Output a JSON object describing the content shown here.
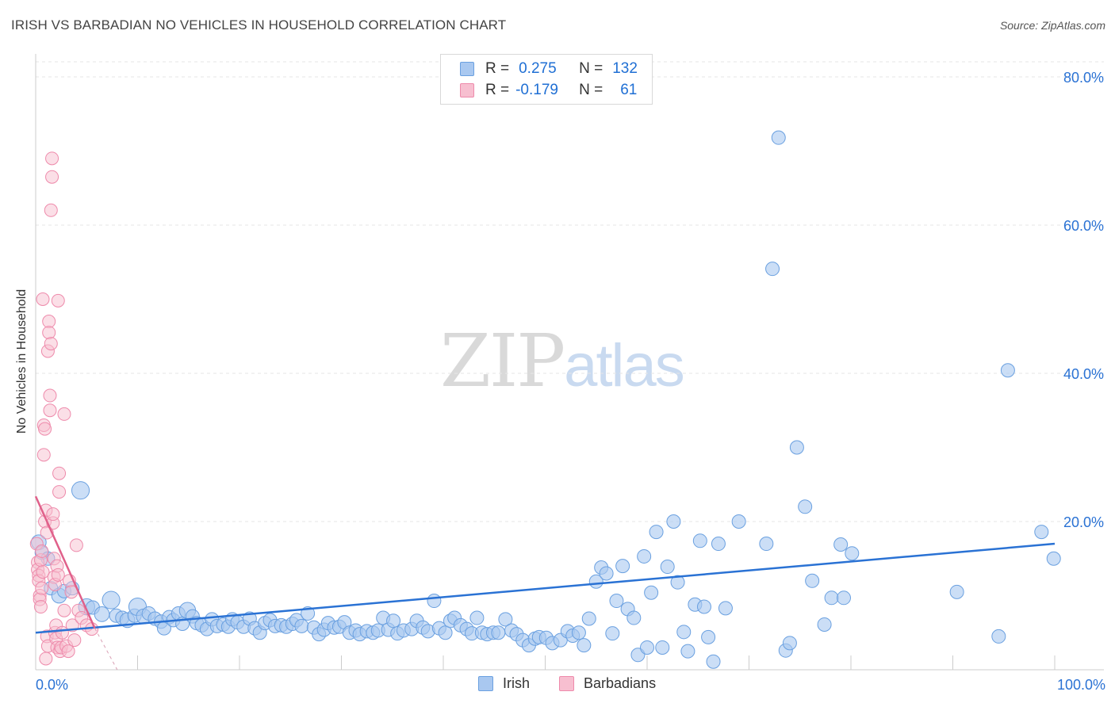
{
  "title": "IRISH VS BARBADIAN NO VEHICLES IN HOUSEHOLD CORRELATION CHART",
  "source": "Source: ZipAtlas.com",
  "watermark": {
    "part1": "ZIP",
    "part2": "atlas"
  },
  "legend": {
    "rows": [
      {
        "r_label": "R =",
        "r_value": "0.275",
        "n_label": "N =",
        "n_value": "132"
      },
      {
        "r_label": "R =",
        "r_value": "-0.179",
        "n_label": "N =",
        "n_value": "61"
      }
    ]
  },
  "colors": {
    "irish_fill": "#a9c8f0",
    "irish_stroke": "#6aa0e0",
    "irish_line": "#2a72d4",
    "barbadian_fill": "#f7bfd0",
    "barbadian_stroke": "#ee8aab",
    "barbadian_line": "#e0608a",
    "axis_text": "#2a72d4",
    "grid": "#e6e6e6"
  },
  "chart_data": {
    "type": "scatter",
    "title": "IRISH VS BARBADIAN NO VEHICLES IN HOUSEHOLD CORRELATION CHART",
    "xlabel": "",
    "ylabel": "No Vehicles in Household",
    "xlim": [
      0,
      100
    ],
    "ylim": [
      0,
      80
    ],
    "x_tick_labels": [
      "0.0%",
      "100.0%"
    ],
    "y_ticks": [
      20,
      40,
      60,
      80
    ],
    "y_tick_labels": [
      "20.0%",
      "40.0%",
      "60.0%",
      "80.0%"
    ],
    "legend_position": "top-center",
    "series": [
      {
        "name": "Irish",
        "r": 0.275,
        "n": 132,
        "trend": {
          "x": [
            0,
            100
          ],
          "y": [
            5.0,
            17.0
          ]
        },
        "points": [
          [
            0.3,
            17.2,
            1.1
          ],
          [
            0.6,
            15.8,
            1.0
          ],
          [
            1.2,
            15.0,
            1.0
          ],
          [
            1.5,
            11.0,
            1.0
          ],
          [
            2.3,
            10.0,
            1.1
          ],
          [
            2.8,
            10.6,
            1.0
          ],
          [
            3.6,
            11.0,
            1.0
          ],
          [
            4.4,
            24.2,
            1.3
          ],
          [
            5.0,
            8.5,
            1.2
          ],
          [
            5.6,
            8.4,
            1.0
          ],
          [
            6.5,
            7.5,
            1.1
          ],
          [
            7.4,
            9.4,
            1.3
          ],
          [
            7.9,
            7.3,
            1.0
          ],
          [
            8.5,
            7.0,
            1.0
          ],
          [
            9.0,
            6.7,
            1.1
          ],
          [
            9.7,
            7.3,
            1.0
          ],
          [
            10.0,
            8.5,
            1.3
          ],
          [
            10.6,
            7.2,
            1.1
          ],
          [
            11.1,
            7.6,
            1.0
          ],
          [
            11.7,
            6.9,
            1.0
          ],
          [
            12.3,
            6.5,
            1.0
          ],
          [
            12.6,
            5.6,
            1.0
          ],
          [
            13.1,
            7.1,
            1.0
          ],
          [
            13.5,
            6.7,
            1.0
          ],
          [
            14.0,
            7.6,
            1.0
          ],
          [
            14.4,
            6.2,
            1.0
          ],
          [
            14.9,
            8.0,
            1.2
          ],
          [
            15.4,
            7.2,
            1.0
          ],
          [
            15.8,
            6.3,
            1.0
          ],
          [
            16.3,
            6.0,
            1.0
          ],
          [
            16.8,
            5.5,
            1.0
          ],
          [
            17.3,
            6.8,
            1.0
          ],
          [
            17.8,
            5.9,
            1.0
          ],
          [
            18.4,
            6.1,
            1.0
          ],
          [
            18.9,
            5.8,
            1.0
          ],
          [
            19.3,
            6.8,
            1.0
          ],
          [
            19.8,
            6.4,
            1.0
          ],
          [
            20.4,
            5.8,
            1.0
          ],
          [
            21.0,
            6.9,
            1.0
          ],
          [
            21.5,
            5.6,
            1.0
          ],
          [
            22.0,
            5.0,
            1.0
          ],
          [
            22.5,
            6.3,
            1.0
          ],
          [
            23.0,
            6.7,
            1.0
          ],
          [
            23.5,
            5.9,
            1.0
          ],
          [
            24.1,
            6.0,
            1.0
          ],
          [
            24.6,
            5.8,
            1.0
          ],
          [
            25.2,
            6.2,
            1.0
          ],
          [
            25.6,
            6.7,
            1.0
          ],
          [
            26.1,
            5.9,
            1.0
          ],
          [
            26.7,
            7.6,
            1.0
          ],
          [
            27.3,
            5.7,
            1.0
          ],
          [
            27.8,
            4.8,
            1.0
          ],
          [
            28.3,
            5.4,
            1.0
          ],
          [
            28.7,
            6.3,
            1.0
          ],
          [
            29.3,
            5.7,
            1.0
          ],
          [
            29.8,
            5.8,
            1.0
          ],
          [
            30.3,
            6.4,
            1.0
          ],
          [
            30.8,
            5.0,
            1.0
          ],
          [
            31.4,
            5.3,
            1.0
          ],
          [
            31.8,
            4.8,
            1.0
          ],
          [
            32.5,
            5.2,
            1.0
          ],
          [
            33.1,
            5.0,
            1.0
          ],
          [
            33.6,
            5.3,
            1.0
          ],
          [
            34.1,
            7.0,
            1.0
          ],
          [
            34.6,
            5.4,
            1.0
          ],
          [
            35.1,
            6.6,
            1.0
          ],
          [
            35.5,
            4.9,
            1.0
          ],
          [
            36.1,
            5.3,
            1.0
          ],
          [
            36.9,
            5.5,
            1.0
          ],
          [
            37.4,
            6.6,
            1.0
          ],
          [
            38.0,
            5.7,
            1.0
          ],
          [
            38.5,
            5.2,
            1.0
          ],
          [
            39.1,
            9.3,
            1.0
          ],
          [
            39.6,
            5.6,
            1.0
          ],
          [
            40.2,
            5.0,
            1.0
          ],
          [
            40.7,
            6.6,
            1.0
          ],
          [
            41.1,
            7.0,
            1.0
          ],
          [
            41.7,
            6.0,
            1.0
          ],
          [
            42.3,
            5.5,
            1.0
          ],
          [
            42.8,
            4.9,
            1.0
          ],
          [
            43.3,
            7.0,
            1.0
          ],
          [
            43.8,
            5.0,
            1.0
          ],
          [
            44.3,
            4.8,
            1.0
          ],
          [
            44.9,
            5.0,
            1.0
          ],
          [
            45.4,
            5.0,
            1.0
          ],
          [
            46.1,
            6.8,
            1.0
          ],
          [
            46.7,
            5.3,
            1.0
          ],
          [
            47.2,
            4.8,
            1.0
          ],
          [
            47.8,
            4.0,
            1.0
          ],
          [
            48.4,
            3.3,
            1.0
          ],
          [
            49.0,
            4.2,
            1.0
          ],
          [
            49.4,
            4.4,
            1.0
          ],
          [
            50.1,
            4.3,
            1.0
          ],
          [
            50.7,
            3.6,
            1.0
          ],
          [
            51.5,
            4.0,
            1.0
          ],
          [
            52.2,
            5.2,
            1.0
          ],
          [
            52.7,
            4.6,
            1.0
          ],
          [
            53.3,
            5.0,
            1.0
          ],
          [
            53.8,
            3.3,
            1.0
          ],
          [
            54.3,
            6.9,
            1.0
          ],
          [
            55.0,
            11.9,
            1.0
          ],
          [
            55.5,
            13.8,
            1.0
          ],
          [
            56.0,
            13.0,
            1.0
          ],
          [
            56.6,
            4.9,
            1.0
          ],
          [
            57.0,
            9.3,
            1.0
          ],
          [
            57.6,
            14.0,
            1.0
          ],
          [
            58.1,
            8.2,
            1.0
          ],
          [
            58.7,
            7.0,
            1.0
          ],
          [
            59.1,
            2.0,
            1.0
          ],
          [
            59.7,
            15.3,
            1.0
          ],
          [
            60.0,
            3.0,
            1.0
          ],
          [
            60.4,
            10.4,
            1.0
          ],
          [
            60.9,
            18.6,
            1.0
          ],
          [
            61.5,
            3.0,
            1.0
          ],
          [
            62.0,
            13.9,
            1.0
          ],
          [
            62.6,
            20.0,
            1.0
          ],
          [
            63.0,
            11.8,
            1.0
          ],
          [
            63.6,
            5.1,
            1.0
          ],
          [
            64.0,
            2.5,
            1.0
          ],
          [
            64.7,
            8.8,
            1.0
          ],
          [
            65.2,
            17.4,
            1.0
          ],
          [
            65.6,
            8.5,
            1.0
          ],
          [
            66.0,
            4.4,
            1.0
          ],
          [
            66.5,
            1.1,
            1.0
          ],
          [
            67.0,
            17.0,
            1.0
          ],
          [
            67.7,
            8.3,
            1.0
          ],
          [
            69.0,
            20.0,
            1.0
          ],
          [
            71.7,
            17.0,
            1.0
          ],
          [
            72.3,
            54.1,
            1.0
          ],
          [
            72.9,
            71.8,
            1.0
          ],
          [
            73.6,
            2.6,
            1.0
          ],
          [
            74.0,
            3.6,
            1.0
          ],
          [
            74.7,
            30.0,
            1.0
          ],
          [
            75.5,
            22.0,
            1.0
          ],
          [
            76.2,
            12.0,
            1.0
          ],
          [
            77.4,
            6.1,
            1.0
          ],
          [
            78.1,
            9.7,
            1.0
          ],
          [
            79.0,
            16.9,
            1.0
          ],
          [
            79.3,
            9.7,
            1.0
          ],
          [
            80.1,
            15.7,
            1.0
          ],
          [
            90.4,
            10.5,
            1.0
          ],
          [
            94.5,
            4.5,
            1.0
          ],
          [
            95.4,
            40.4,
            1.0
          ],
          [
            98.7,
            18.6,
            1.0
          ],
          [
            99.9,
            15.0,
            1.0
          ]
        ]
      },
      {
        "name": "Barbadians",
        "r": -0.179,
        "n": 61,
        "trend": {
          "x": [
            0,
            5.8
          ],
          "y": [
            23.4,
            5.6
          ]
        },
        "trend_dashed": {
          "x": [
            5.8,
            8.0
          ],
          "y": [
            5.6,
            0
          ]
        },
        "points": [
          [
            0.1,
            17.0
          ],
          [
            0.2,
            14.5
          ],
          [
            0.2,
            13.5
          ],
          [
            0.3,
            12.7
          ],
          [
            0.3,
            12.0
          ],
          [
            0.4,
            10.0
          ],
          [
            0.4,
            9.5
          ],
          [
            0.5,
            8.5
          ],
          [
            0.5,
            14.8
          ],
          [
            0.6,
            11.0
          ],
          [
            0.6,
            16.0
          ],
          [
            0.7,
            13.2
          ],
          [
            0.7,
            50.0
          ],
          [
            0.8,
            33.0
          ],
          [
            0.8,
            29.0
          ],
          [
            0.9,
            32.5
          ],
          [
            0.9,
            20.0
          ],
          [
            1.0,
            21.5
          ],
          [
            1.0,
            1.5
          ],
          [
            1.1,
            18.5
          ],
          [
            1.1,
            4.5
          ],
          [
            1.2,
            3.2
          ],
          [
            1.2,
            43.0
          ],
          [
            1.3,
            47.0
          ],
          [
            1.3,
            45.5
          ],
          [
            1.4,
            37.0
          ],
          [
            1.4,
            35.0
          ],
          [
            1.5,
            44.0
          ],
          [
            1.5,
            62.0
          ],
          [
            1.6,
            66.5
          ],
          [
            1.6,
            69.0
          ],
          [
            1.7,
            19.8
          ],
          [
            1.7,
            21.0
          ],
          [
            1.8,
            15.0
          ],
          [
            1.8,
            12.5
          ],
          [
            1.9,
            11.5
          ],
          [
            1.9,
            5.0
          ],
          [
            2.0,
            4.2
          ],
          [
            2.0,
            6.0
          ],
          [
            2.1,
            3.0
          ],
          [
            2.1,
            14.0
          ],
          [
            2.2,
            12.8
          ],
          [
            2.2,
            49.8
          ],
          [
            2.3,
            24.0
          ],
          [
            2.3,
            26.5
          ],
          [
            2.4,
            2.5
          ],
          [
            2.5,
            3.0
          ],
          [
            2.6,
            5.0
          ],
          [
            2.8,
            8.0
          ],
          [
            2.8,
            34.5
          ],
          [
            3.0,
            3.2
          ],
          [
            3.2,
            2.5
          ],
          [
            3.3,
            12.0
          ],
          [
            3.5,
            10.5
          ],
          [
            3.6,
            6.0
          ],
          [
            3.8,
            4.0
          ],
          [
            4.0,
            16.8
          ],
          [
            4.2,
            8.0
          ],
          [
            4.5,
            7.0
          ],
          [
            5.0,
            6.0
          ],
          [
            5.5,
            5.5
          ]
        ]
      }
    ]
  },
  "bottom_legend": [
    {
      "name": "Irish"
    },
    {
      "name": "Barbadians"
    }
  ]
}
